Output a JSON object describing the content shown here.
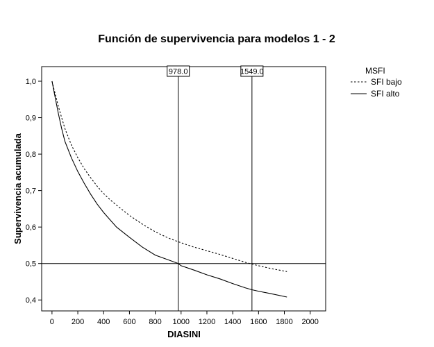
{
  "chart_data": {
    "type": "line",
    "title": "Función de supervivencia para modelos 1 - 2",
    "xlabel": "DIASINI",
    "ylabel": "Supervivencia acumulada",
    "xlim": [
      -80,
      2120
    ],
    "ylim": [
      0.37,
      1.04
    ],
    "x_ticks": [
      0,
      200,
      400,
      600,
      800,
      1000,
      1200,
      1400,
      1600,
      1800,
      2000
    ],
    "y_ticks": [
      0.4,
      0.5,
      0.6,
      0.7,
      0.8,
      0.9,
      1.0
    ],
    "y_tick_labels": [
      "0,4",
      "0,5",
      "0,6",
      "0,7",
      "0,8",
      "0,9",
      "1,0"
    ],
    "legend": {
      "title": "MSFI",
      "placement": "outside-right-top"
    },
    "grid": false,
    "series": [
      {
        "name": "SFI bajo",
        "style": "dotted",
        "color": "#000000",
        "x": [
          0,
          25,
          50,
          75,
          100,
          150,
          200,
          250,
          300,
          350,
          400,
          450,
          500,
          600,
          700,
          800,
          900,
          1000,
          1100,
          1200,
          1300,
          1400,
          1500,
          1600,
          1700,
          1820
        ],
        "y": [
          1.0,
          0.965,
          0.93,
          0.9,
          0.87,
          0.825,
          0.79,
          0.76,
          0.735,
          0.712,
          0.692,
          0.675,
          0.66,
          0.632,
          0.608,
          0.587,
          0.57,
          0.557,
          0.545,
          0.535,
          0.525,
          0.514,
          0.503,
          0.494,
          0.486,
          0.478
        ]
      },
      {
        "name": "SFI alto",
        "style": "solid",
        "color": "#000000",
        "x": [
          0,
          25,
          50,
          75,
          100,
          150,
          200,
          250,
          300,
          350,
          400,
          450,
          500,
          600,
          700,
          800,
          900,
          978,
          1000,
          1100,
          1200,
          1300,
          1400,
          1500,
          1549,
          1600,
          1700,
          1820
        ],
        "y": [
          1.0,
          0.955,
          0.91,
          0.87,
          0.835,
          0.79,
          0.752,
          0.72,
          0.69,
          0.663,
          0.64,
          0.62,
          0.6,
          0.572,
          0.545,
          0.523,
          0.51,
          0.5,
          0.494,
          0.482,
          0.469,
          0.458,
          0.445,
          0.433,
          0.428,
          0.424,
          0.417,
          0.408
        ]
      }
    ],
    "reference_lines": {
      "horizontal": [
        0.5
      ],
      "vertical": [
        {
          "x": 978,
          "label": "978.0"
        },
        {
          "x": 1549,
          "label": "1549.0"
        }
      ]
    }
  }
}
